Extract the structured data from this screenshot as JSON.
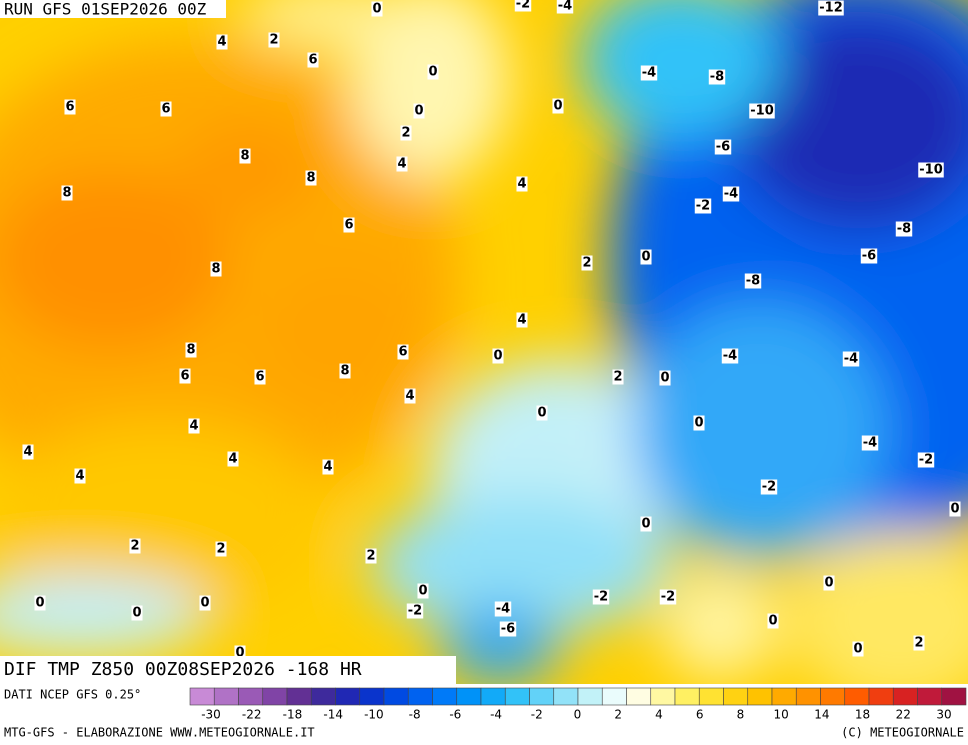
{
  "header": {
    "run": "RUN GFS 01SEP2026 00Z",
    "title": "DIF TMP Z850 00Z08SEP2026 -168 HR"
  },
  "map": {
    "contour_labels": [
      0,
      -2,
      -4,
      -12,
      4,
      2,
      6,
      0,
      -4,
      -8,
      6,
      6,
      0,
      0,
      2,
      -10,
      8,
      4,
      -6,
      8,
      4,
      -10,
      8,
      -4,
      -2,
      6,
      -8,
      -6,
      8,
      2,
      0,
      -8,
      4,
      8,
      6,
      0,
      -4,
      -4,
      6,
      6,
      8,
      2,
      0,
      4,
      0,
      4,
      0,
      -4,
      4,
      4,
      4,
      -2,
      4,
      -2,
      0,
      0,
      2,
      2,
      2,
      0,
      0,
      0,
      0,
      0,
      -2,
      -4,
      -2,
      -2,
      0,
      -6,
      2,
      0,
      0
    ]
  },
  "legend": {
    "source": "DATI NCEP GFS 0.25°",
    "colors": [
      "#c88ad6",
      "#b072c6",
      "#9a5ab6",
      "#8044a6",
      "#623094",
      "#3e2a9c",
      "#2028b4",
      "#0a34cc",
      "#004ae2",
      "#0062f0",
      "#007af8",
      "#0092f8",
      "#12aaf8",
      "#32c2f8",
      "#62d2f8",
      "#92e2f8",
      "#c2f2f8",
      "#eafcfc",
      "#fffde2",
      "#fff8a2",
      "#fff062",
      "#ffe232",
      "#ffd212",
      "#ffc200",
      "#ffaa00",
      "#ff9200",
      "#ff7a00",
      "#ff5c00",
      "#f03e10",
      "#d82222",
      "#c01a3a",
      "#a01242"
    ],
    "ticks": [
      -30,
      -22,
      -18,
      -14,
      -10,
      -8,
      -6,
      -4,
      -2,
      0,
      2,
      4,
      6,
      8,
      10,
      14,
      18,
      22,
      30
    ]
  },
  "footer": {
    "credit": "MTG-GFS - ELABORAZIONE WWW.METEOGIORNALE.IT",
    "copyright": "(C) METEOGIORNALE"
  }
}
